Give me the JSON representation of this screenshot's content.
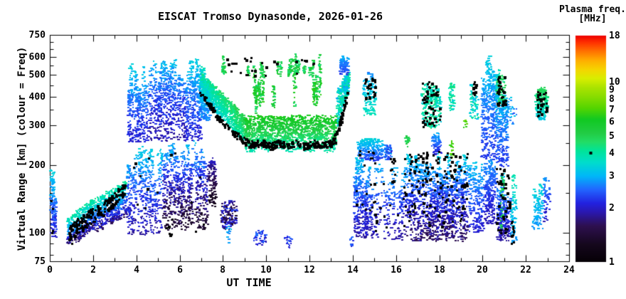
{
  "title": "EISCAT Tromso Dynasonde, 2026-01-26",
  "axes": {
    "x": {
      "label": "UT TIME",
      "min": 0,
      "max": 24,
      "scale": "linear",
      "major_ticks": [
        0,
        2,
        4,
        6,
        8,
        10,
        12,
        14,
        16,
        18,
        20,
        22,
        24
      ],
      "minor_ticks": [
        1,
        3,
        5,
        7,
        9,
        11,
        13,
        15,
        17,
        19,
        21,
        23
      ]
    },
    "y": {
      "label": "Virtual Range [km] (colour = Freq)",
      "min": 75,
      "max": 750,
      "scale": "log",
      "major_ticks": [
        75,
        100,
        200,
        300,
        400,
        500,
        600,
        750
      ],
      "minor_ticks": [
        80,
        90,
        150,
        250,
        350,
        450,
        550,
        650,
        700
      ]
    }
  },
  "colorbar": {
    "title_line1": "Plasma freq.",
    "title_line2": "[MHz]",
    "min": 1,
    "max": 18,
    "scale": "log",
    "tick_labels": [
      18,
      10,
      9,
      8,
      7,
      6,
      5,
      4,
      3,
      2,
      1
    ],
    "marker": {
      "freq": 4,
      "color": "#000000",
      "meaning": "black square marker sample"
    },
    "stops": [
      [
        0.0,
        "#060006"
      ],
      [
        0.08,
        "#16081e"
      ],
      [
        0.16,
        "#2e1050"
      ],
      [
        0.22,
        "#2a18b0"
      ],
      [
        0.26,
        "#2222e0"
      ],
      [
        0.32,
        "#2266ff"
      ],
      [
        0.38,
        "#00b8f8"
      ],
      [
        0.44,
        "#00ddcc"
      ],
      [
        0.49,
        "#00e49a"
      ],
      [
        0.53,
        "#22dd66"
      ],
      [
        0.57,
        "#22cc44"
      ],
      [
        0.63,
        "#11c922"
      ],
      [
        0.68,
        "#55d500"
      ],
      [
        0.73,
        "#88dd00"
      ],
      [
        0.77,
        "#aae300"
      ],
      [
        0.81,
        "#d8ee00"
      ],
      [
        0.85,
        "#f5d500"
      ],
      [
        0.89,
        "#ffae00"
      ],
      [
        0.93,
        "#ff7300"
      ],
      [
        0.97,
        "#ff3000"
      ],
      [
        1.0,
        "#ee0000"
      ]
    ]
  },
  "chart_data": {
    "type": "scatter",
    "x_unit": "UT hours",
    "y_unit": "virtual range km (log 75-750)",
    "color_unit": "plasma frequency MHz (log 1-18)",
    "cluster_format": "[t_start, t_end, range_bottom_at_start, range_top_at_start, range_bottom_at_end, range_top_at_end, freq_min_MHz, freq_max_MHz, n_points, shape, color_gradient]",
    "clusters": [
      [
        0.02,
        0.3,
        95,
        205,
        95,
        205,
        2.0,
        3.6,
        170,
        "cols",
        "v"
      ],
      [
        0.8,
        3.55,
        88,
        118,
        118,
        172,
        1.6,
        4.2,
        950,
        "band",
        "v"
      ],
      [
        3.55,
        5.2,
        98,
        245,
        98,
        245,
        1.8,
        3.4,
        600,
        "cols",
        "v"
      ],
      [
        5.2,
        7.3,
        103,
        262,
        103,
        262,
        1.3,
        3.2,
        780,
        "cols",
        "v"
      ],
      [
        7.3,
        7.7,
        130,
        215,
        130,
        215,
        1.2,
        2.0,
        130,
        "blob",
        "v"
      ],
      [
        7.9,
        8.65,
        103,
        140,
        103,
        140,
        1.3,
        2.3,
        150,
        "blob",
        "none"
      ],
      [
        8.15,
        8.4,
        90,
        108,
        90,
        108,
        2.7,
        3.2,
        14,
        "blob",
        "none"
      ],
      [
        9.4,
        10.0,
        88,
        103,
        88,
        103,
        1.9,
        2.6,
        45,
        "blob",
        "none"
      ],
      [
        10.75,
        11.2,
        86,
        97,
        86,
        97,
        1.9,
        2.6,
        20,
        "blob",
        "none"
      ],
      [
        13.85,
        14.05,
        87,
        96,
        87,
        96,
        2.0,
        2.6,
        10,
        "blob",
        "none"
      ],
      [
        3.6,
        4.6,
        250,
        570,
        250,
        570,
        2.0,
        3.4,
        480,
        "cols",
        "v"
      ],
      [
        4.6,
        6.25,
        255,
        645,
        255,
        645,
        1.8,
        3.4,
        760,
        "cols",
        "v"
      ],
      [
        6.25,
        7.05,
        255,
        600,
        255,
        600,
        2.0,
        3.4,
        430,
        "cols",
        "v"
      ],
      [
        6.9,
        7.5,
        330,
        645,
        300,
        600,
        2.6,
        4.2,
        380,
        "cols",
        "v"
      ],
      [
        7.0,
        9.0,
        390,
        505,
        246,
        331,
        3.0,
        5.2,
        850,
        "band",
        "vt"
      ],
      [
        9.0,
        13.25,
        233,
        332,
        233,
        332,
        3.8,
        6.4,
        1500,
        "band",
        "v"
      ],
      [
        9.3,
        12.9,
        332,
        560,
        332,
        560,
        4.4,
        6.6,
        330,
        "spurs",
        "none"
      ],
      [
        7.95,
        12.9,
        480,
        622,
        480,
        622,
        4.2,
        5.8,
        300,
        "spurs",
        "none"
      ],
      [
        13.25,
        13.85,
        280,
        430,
        430,
        530,
        2.8,
        4.4,
        300,
        "band",
        "none"
      ],
      [
        13.4,
        13.8,
        500,
        632,
        500,
        632,
        2.2,
        3.2,
        130,
        "cols",
        "v"
      ],
      [
        14.5,
        15.05,
        330,
        528,
        330,
        528,
        2.6,
        3.8,
        170,
        "cols",
        "vd"
      ],
      [
        14.2,
        15.45,
        208,
        262,
        208,
        262,
        2.2,
        3.4,
        280,
        "blob",
        "v"
      ],
      [
        15.45,
        15.8,
        210,
        246,
        210,
        246,
        2.0,
        3.0,
        60,
        "blob",
        "none"
      ],
      [
        16.42,
        16.62,
        238,
        272,
        238,
        272,
        4.7,
        5.4,
        18,
        "blob",
        "none"
      ],
      [
        17.15,
        18.1,
        300,
        478,
        280,
        430,
        3.3,
        4.5,
        230,
        "blob",
        "none"
      ],
      [
        17.65,
        18.08,
        222,
        280,
        222,
        280,
        2.0,
        3.0,
        95,
        "cols",
        "v"
      ],
      [
        18.5,
        18.68,
        212,
        256,
        212,
        256,
        6.4,
        7.5,
        18,
        "blob",
        "none"
      ],
      [
        18.45,
        18.72,
        345,
        468,
        345,
        468,
        3.4,
        4.6,
        60,
        "blob",
        "none"
      ],
      [
        19.42,
        19.78,
        318,
        482,
        318,
        482,
        3.0,
        4.2,
        95,
        "cols",
        "none"
      ],
      [
        19.12,
        19.28,
        288,
        318,
        288,
        318,
        6.5,
        7.8,
        10,
        "blob",
        "none"
      ],
      [
        19.95,
        20.62,
        210,
        612,
        210,
        612,
        2.2,
        3.4,
        420,
        "cols",
        "v"
      ],
      [
        20.6,
        21.18,
        196,
        558,
        196,
        558,
        2.2,
        3.9,
        460,
        "cols",
        "v"
      ],
      [
        20.65,
        21.08,
        372,
        500,
        372,
        500,
        4.2,
        5.2,
        60,
        "blob",
        "none"
      ],
      [
        21.18,
        21.6,
        300,
        425,
        300,
        425,
        2.4,
        3.4,
        35,
        "cols",
        "none"
      ],
      [
        22.45,
        23.02,
        315,
        438,
        315,
        438,
        3.2,
        5.0,
        230,
        "blob",
        "v"
      ],
      [
        14.05,
        14.68,
        95,
        233,
        95,
        233,
        1.8,
        3.4,
        400,
        "cols",
        "v"
      ],
      [
        14.68,
        16.38,
        93,
        212,
        93,
        212,
        1.8,
        3.2,
        430,
        "cols",
        "v"
      ],
      [
        16.38,
        19.35,
        92,
        230,
        92,
        230,
        1.6,
        3.4,
        1500,
        "cols",
        "v"
      ],
      [
        19.35,
        20.06,
        100,
        212,
        100,
        212,
        2.0,
        3.2,
        270,
        "cols",
        "v"
      ],
      [
        20.06,
        20.66,
        110,
        220,
        110,
        220,
        1.9,
        2.9,
        320,
        "cols",
        "v"
      ],
      [
        20.66,
        21.3,
        92,
        200,
        92,
        200,
        1.8,
        3.4,
        400,
        "cols",
        "v"
      ],
      [
        20.72,
        21.0,
        100,
        192,
        100,
        192,
        4.4,
        5.4,
        35,
        "spurs",
        "none"
      ],
      [
        21.3,
        21.56,
        90,
        200,
        90,
        200,
        2.8,
        4.2,
        140,
        "cols",
        "v"
      ],
      [
        22.3,
        22.82,
        103,
        200,
        103,
        200,
        2.8,
        3.8,
        170,
        "cols",
        "v"
      ],
      [
        22.82,
        23.12,
        112,
        180,
        112,
        180,
        1.9,
        2.9,
        110,
        "cols",
        "v"
      ]
    ],
    "black_trails": [
      {
        "points": [
          [
            0.9,
            98
          ],
          [
            1.4,
            108
          ],
          [
            1.9,
            118
          ],
          [
            2.4,
            128
          ],
          [
            2.9,
            140
          ],
          [
            3.5,
            158
          ]
        ],
        "jitter_km": 10,
        "n": 170
      },
      {
        "points": [
          [
            6.95,
            415
          ],
          [
            7.35,
            372
          ],
          [
            7.75,
            326
          ],
          [
            8.15,
            297
          ],
          [
            8.55,
            272
          ],
          [
            9.0,
            254
          ],
          [
            9.4,
            244
          ],
          [
            9.8,
            252
          ],
          [
            10.2,
            240
          ],
          [
            10.6,
            250
          ],
          [
            11.0,
            243
          ],
          [
            11.4,
            250
          ],
          [
            11.8,
            240
          ],
          [
            12.2,
            250
          ],
          [
            12.6,
            244
          ],
          [
            12.95,
            250
          ],
          [
            13.15,
            258
          ],
          [
            13.35,
            290
          ],
          [
            13.55,
            345
          ],
          [
            13.75,
            428
          ]
        ],
        "jitter_km": 8,
        "n": 360
      }
    ],
    "black_cluster_format": "[t_start, t_end, range_low, range_high, n_points]",
    "black_clusters": [
      [
        0.05,
        0.28,
        100,
        165,
        4
      ],
      [
        3.6,
        7.2,
        100,
        245,
        14
      ],
      [
        5.35,
        5.65,
        98,
        116,
        7
      ],
      [
        8.0,
        12.2,
        495,
        595,
        30
      ],
      [
        14.55,
        15.05,
        380,
        495,
        26
      ],
      [
        14.3,
        15.0,
        213,
        232,
        8
      ],
      [
        14.1,
        16.35,
        100,
        218,
        30
      ],
      [
        16.35,
        19.3,
        105,
        228,
        150
      ],
      [
        17.2,
        18.06,
        288,
        470,
        50
      ],
      [
        19.5,
        19.74,
        405,
        472,
        9
      ],
      [
        20.65,
        21.06,
        368,
        492,
        30
      ],
      [
        20.6,
        21.28,
        95,
        196,
        40
      ],
      [
        21.32,
        21.52,
        90,
        114,
        10
      ],
      [
        22.5,
        22.96,
        328,
        424,
        34
      ],
      [
        15.0,
        15.12,
        100,
        122,
        4
      ]
    ]
  }
}
